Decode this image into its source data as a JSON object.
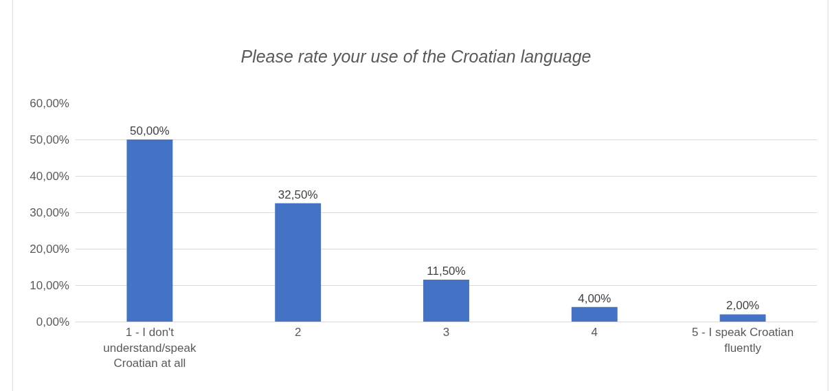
{
  "chart_data": {
    "type": "bar",
    "title": "Please rate your use of the Croatian language",
    "categories": [
      "1 - I don't understand/speak Croatian at all",
      "2",
      "3",
      "4",
      "5 - I speak Croatian fluently"
    ],
    "values": [
      50,
      32.5,
      11.5,
      4,
      2
    ],
    "value_labels": [
      "50,00%",
      "32,50%",
      "11,50%",
      "4,00%",
      "2,00%"
    ],
    "color": "#4472c4",
    "ylim": [
      0,
      60
    ],
    "yticks": [
      {
        "value": 0,
        "label": "0,00%"
      },
      {
        "value": 10,
        "label": "10,00%"
      },
      {
        "value": 20,
        "label": "20,00%"
      },
      {
        "value": 30,
        "label": "30,00%"
      },
      {
        "value": 40,
        "label": "40,00%"
      },
      {
        "value": 50,
        "label": "50,00%"
      },
      {
        "value": 60,
        "label": "60,00%"
      }
    ],
    "grid": "y"
  }
}
